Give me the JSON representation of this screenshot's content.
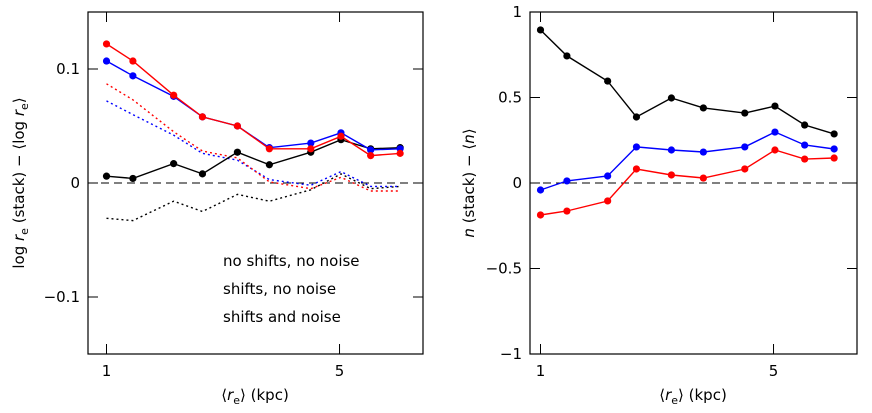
{
  "chart_data": [
    {
      "type": "line",
      "xlog": true,
      "xlim": [
        0.88,
        8.9
      ],
      "ylim": [
        -0.15,
        0.15
      ],
      "xticks": [
        1,
        5
      ],
      "yticks": [
        {
          "value": -0.1,
          "label": "−0.1"
        },
        0,
        0.1
      ],
      "hline": 0,
      "legend": "lower right",
      "ylabel": [
        "log ",
        "r",
        "e",
        " (stack) − ⟨log ",
        "r",
        "e",
        "⟩"
      ],
      "xlabel": [
        "⟨",
        "r",
        "e",
        "⟩ (kpc)"
      ],
      "x": [
        1,
        1.2,
        1.59,
        1.94,
        2.47,
        3.08,
        4.1,
        5.05,
        6.2,
        7.6
      ],
      "series": [
        {
          "color": "#000000",
          "style": "dotted",
          "values": [
            -0.031,
            -0.033,
            -0.016,
            -0.025,
            -0.01,
            -0.016,
            -0.006,
            0.008,
            -0.005,
            -0.003
          ]
        },
        {
          "color": "#0000ff",
          "style": "dotted",
          "values": [
            0.072,
            0.06,
            0.042,
            0.026,
            0.02,
            0.003,
            -0.002,
            0.01,
            -0.003,
            -0.003
          ]
        },
        {
          "color": "#ff0000",
          "style": "dotted",
          "values": [
            0.087,
            0.073,
            0.045,
            0.028,
            0.022,
            0.001,
            -0.005,
            0.005,
            -0.007,
            -0.007
          ]
        },
        {
          "name": "no shifts, no noise",
          "color": "#000000",
          "style": "solid",
          "values": [
            0.006,
            0.004,
            0.017,
            0.008,
            0.027,
            0.016,
            0.027,
            0.038,
            0.03,
            0.031
          ]
        },
        {
          "name": "shifts, no noise",
          "color": "#0000ff",
          "style": "solid",
          "values": [
            0.107,
            0.094,
            0.076,
            0.058,
            0.05,
            0.031,
            0.035,
            0.044,
            0.029,
            0.03
          ]
        },
        {
          "name": "shifts and noise",
          "color": "#ff0000",
          "style": "solid",
          "values": [
            0.122,
            0.107,
            0.077,
            0.058,
            0.05,
            0.03,
            0.03,
            0.041,
            0.024,
            0.026
          ]
        }
      ]
    },
    {
      "type": "line",
      "xlog": true,
      "xlim": [
        0.93,
        8.9
      ],
      "ylim": [
        -1,
        1
      ],
      "xticks": [
        1,
        5
      ],
      "yticks": [
        {
          "value": -1,
          "label": "−1"
        },
        {
          "value": -0.5,
          "label": "−0.5"
        },
        0,
        0.5,
        1
      ],
      "hline": 0,
      "ylabel": [
        "n",
        " (stack) − ⟨",
        "n",
        "⟩"
      ],
      "xlabel": [
        "⟨",
        "r",
        "e",
        "⟩ (kpc)"
      ],
      "x": [
        1,
        1.2,
        1.59,
        1.94,
        2.47,
        3.08,
        4.1,
        5.05,
        6.2,
        7.6
      ],
      "series": [
        {
          "color": "#000000",
          "style": "solid",
          "values": [
            0.895,
            0.743,
            0.596,
            0.386,
            0.497,
            0.439,
            0.409,
            0.45,
            0.339,
            0.287
          ]
        },
        {
          "color": "#0000ff",
          "style": "solid",
          "values": [
            -0.041,
            0.012,
            0.041,
            0.211,
            0.193,
            0.181,
            0.211,
            0.298,
            0.222,
            0.199
          ]
        },
        {
          "color": "#ff0000",
          "style": "solid",
          "values": [
            -0.187,
            -0.164,
            -0.105,
            0.082,
            0.047,
            0.029,
            0.082,
            0.193,
            0.14,
            0.146
          ]
        }
      ]
    }
  ]
}
